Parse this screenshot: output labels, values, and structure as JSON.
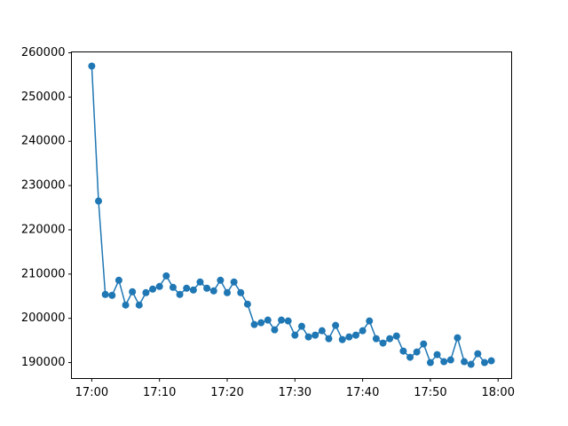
{
  "chart_data": {
    "type": "line",
    "color": "#1f77b4",
    "marker": "circle",
    "x": [
      "17:00",
      "17:01",
      "17:02",
      "17:03",
      "17:04",
      "17:05",
      "17:06",
      "17:07",
      "17:08",
      "17:09",
      "17:10",
      "17:11",
      "17:12",
      "17:13",
      "17:14",
      "17:15",
      "17:16",
      "17:17",
      "17:18",
      "17:19",
      "17:20",
      "17:21",
      "17:22",
      "17:23",
      "17:24",
      "17:25",
      "17:26",
      "17:27",
      "17:28",
      "17:29",
      "17:30",
      "17:31",
      "17:32",
      "17:33",
      "17:34",
      "17:35",
      "17:36",
      "17:37",
      "17:38",
      "17:39",
      "17:40",
      "17:41",
      "17:42",
      "17:43",
      "17:44",
      "17:45",
      "17:46",
      "17:47",
      "17:48",
      "17:49",
      "17:50",
      "17:51",
      "17:52",
      "17:53",
      "17:54",
      "17:55",
      "17:56",
      "17:57",
      "17:58",
      "17:59"
    ],
    "values": [
      257000,
      226500,
      205400,
      205200,
      208600,
      203000,
      206000,
      203000,
      205800,
      206600,
      207200,
      209600,
      207000,
      205400,
      206800,
      206400,
      208200,
      206800,
      206200,
      208600,
      205800,
      208200,
      205800,
      203200,
      198600,
      199000,
      199600,
      197400,
      199600,
      199400,
      196200,
      198200,
      195800,
      196200,
      197200,
      195400,
      198400,
      195200,
      195800,
      196200,
      197200,
      199400,
      195400,
      194400,
      195400,
      196000,
      192600,
      191200,
      192400,
      194200,
      190000,
      191800,
      190200,
      190600,
      195600,
      190200,
      189600,
      192000,
      190000,
      190400
    ],
    "xlim": [
      "16:57",
      "18:02"
    ],
    "xticks": [
      "17:00",
      "17:10",
      "17:20",
      "17:30",
      "17:40",
      "17:50",
      "18:00"
    ],
    "ylim": [
      186400,
      260200
    ],
    "yticks": [
      190000,
      200000,
      210000,
      220000,
      230000,
      240000,
      250000,
      260000
    ]
  }
}
